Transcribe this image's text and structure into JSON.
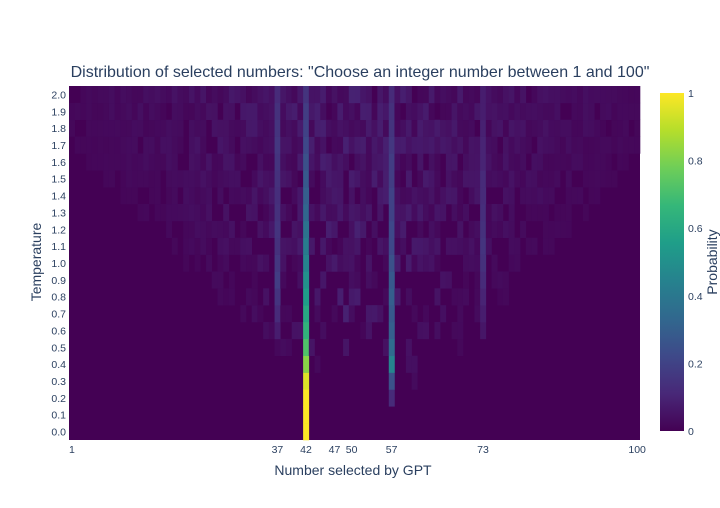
{
  "chart_data": {
    "type": "heatmap",
    "title": "Distribution of selected numbers: \"Choose an integer number between 1 and 100\"",
    "xlabel": "Number selected by GPT",
    "ylabel": "Temperature",
    "xlim": [
      1,
      100
    ],
    "x_ticks": [
      1,
      37,
      42,
      47,
      50,
      57,
      73,
      100
    ],
    "y_ticks": [
      0.0,
      0.1,
      0.2,
      0.3,
      0.4,
      0.5,
      0.6,
      0.7,
      0.8,
      0.9,
      1.0,
      1.1,
      1.2,
      1.3,
      1.4,
      1.5,
      1.6,
      1.7,
      1.8,
      1.9,
      2.0
    ],
    "y_tick_labels": [
      "0.0",
      "0.1",
      "0.2",
      "0.3",
      "0.4",
      "0.5",
      "0.6",
      "0.7",
      "0.8",
      "0.9",
      "1.0",
      "1.1",
      "1.2",
      "1.3",
      "1.4",
      "1.5",
      "1.6",
      "1.7",
      "1.8",
      "1.9",
      "2.0"
    ],
    "colorscale": "Viridis",
    "colorbar": {
      "title": "Probability",
      "range": [
        0,
        1
      ],
      "ticks": [
        0,
        0.2,
        0.4,
        0.6,
        0.8,
        1
      ],
      "tick_labels": [
        "0",
        "0.2",
        "0.4",
        "0.6",
        "0.8",
        "1"
      ]
    },
    "peaks": [
      {
        "x": 42,
        "values_by_temperature": {
          "0.0": 1.0,
          "0.1": 1.0,
          "0.2": 1.0,
          "0.3": 0.95,
          "0.4": 0.82,
          "0.5": 0.72,
          "0.6": 0.65,
          "0.7": 0.6,
          "0.8": 0.55,
          "0.9": 0.5,
          "1.0": 0.45,
          "1.1": 0.42,
          "1.2": 0.38,
          "1.3": 0.33,
          "1.4": 0.3,
          "1.5": 0.28,
          "1.6": 0.25,
          "1.7": 0.22,
          "1.8": 0.2,
          "1.9": 0.18,
          "2.0": 0.15
        }
      },
      {
        "x": 57,
        "values_by_temperature": {
          "0.2": 0.12,
          "0.3": 0.25,
          "0.4": 0.45,
          "0.5": 0.35,
          "0.6": 0.3,
          "0.7": 0.28,
          "0.8": 0.3,
          "0.9": 0.28,
          "1.0": 0.25,
          "1.1": 0.22,
          "1.2": 0.22,
          "1.3": 0.2,
          "1.4": 0.2,
          "1.5": 0.18,
          "1.6": 0.18,
          "1.7": 0.16,
          "1.8": 0.15,
          "1.9": 0.14,
          "2.0": 0.12
        }
      },
      {
        "x": 37,
        "values_by_temperature": {
          "0.6": 0.08,
          "0.7": 0.12,
          "0.8": 0.15,
          "0.9": 0.18,
          "1.0": 0.16,
          "1.1": 0.14,
          "1.2": 0.15,
          "1.3": 0.14,
          "1.4": 0.13,
          "1.5": 0.14,
          "1.6": 0.15,
          "1.7": 0.16,
          "1.8": 0.15,
          "1.9": 0.14,
          "2.0": 0.12
        }
      },
      {
        "x": 73,
        "values_by_temperature": {
          "0.6": 0.06,
          "0.7": 0.08,
          "0.8": 0.1,
          "0.9": 0.12,
          "1.0": 0.14,
          "1.1": 0.15,
          "1.2": 0.14,
          "1.3": 0.13,
          "1.4": 0.12,
          "1.5": 0.12,
          "1.6": 0.1,
          "1.7": 0.1,
          "1.8": 0.09,
          "1.9": 0.08,
          "2.0": 0.08
        }
      }
    ],
    "background_spread": "Probability mass outside the peaks is low (about 0-0.1) and spreads wider across numbers as temperature increases; at temperature 0 nearly all mass is on 42."
  }
}
